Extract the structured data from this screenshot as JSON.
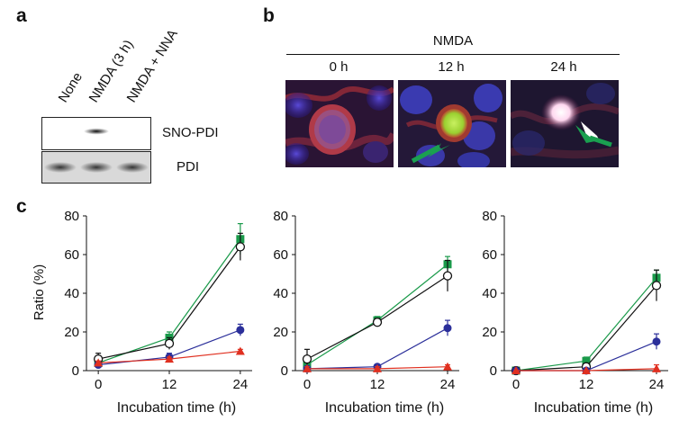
{
  "panel_a": {
    "letter": "a",
    "lanes": [
      "None",
      "NMDA (3 h)",
      "NMDA + NNA"
    ],
    "bands": [
      {
        "label": "SNO-PDI",
        "intensity": [
          0,
          1,
          0
        ]
      },
      {
        "label": "PDI",
        "intensity": [
          1,
          1,
          1
        ]
      }
    ]
  },
  "panel_b": {
    "letter": "b",
    "title": "NMDA",
    "timepoints": [
      "0 h",
      "12 h",
      "24 h"
    ]
  },
  "panel_c": {
    "letter": "c",
    "ylabel": "Ratio (%)",
    "xlabel": "Incubation time (h)"
  },
  "chart_data": [
    {
      "type": "line",
      "title": "",
      "xlabel": "Incubation time (h)",
      "ylabel": "Ratio (%)",
      "x": [
        0,
        12,
        24
      ],
      "xticks": [
        "0",
        "12",
        "24"
      ],
      "yticks": [
        "0",
        "20",
        "40",
        "60",
        "80"
      ],
      "xlim": [
        -2,
        26
      ],
      "ylim": [
        0,
        80
      ],
      "series": [
        {
          "name": "green-square",
          "color": "#1a9a4a",
          "marker": "square",
          "values": [
            4,
            17,
            68
          ],
          "err": [
            1,
            3,
            8
          ]
        },
        {
          "name": "open-circle",
          "color": "#111111",
          "marker": "open-circle",
          "values": [
            6,
            14,
            64
          ],
          "err": [
            3,
            3,
            7
          ]
        },
        {
          "name": "blue-circle",
          "color": "#2b2f9a",
          "marker": "circle",
          "values": [
            3,
            7,
            21
          ],
          "err": [
            1,
            2,
            3
          ]
        },
        {
          "name": "red-triangle",
          "color": "#e03020",
          "marker": "triangle",
          "values": [
            4,
            6,
            10
          ],
          "err": [
            1,
            1,
            1
          ]
        }
      ]
    },
    {
      "type": "line",
      "title": "",
      "xlabel": "Incubation time (h)",
      "ylabel": "",
      "x": [
        0,
        12,
        24
      ],
      "xticks": [
        "0",
        "12",
        "24"
      ],
      "yticks": [
        "0",
        "20",
        "40",
        "60",
        "80"
      ],
      "xlim": [
        -2,
        26
      ],
      "ylim": [
        0,
        80
      ],
      "series": [
        {
          "name": "green-square",
          "color": "#1a9a4a",
          "marker": "square",
          "values": [
            3,
            26,
            55
          ],
          "err": [
            1,
            2,
            4
          ]
        },
        {
          "name": "open-circle",
          "color": "#111111",
          "marker": "open-circle",
          "values": [
            6,
            25,
            49
          ],
          "err": [
            5,
            2,
            8
          ]
        },
        {
          "name": "blue-circle",
          "color": "#2b2f9a",
          "marker": "circle",
          "values": [
            1,
            2,
            22
          ],
          "err": [
            1,
            1,
            4
          ]
        },
        {
          "name": "red-triangle",
          "color": "#e03020",
          "marker": "triangle",
          "values": [
            1,
            1,
            2
          ],
          "err": [
            1,
            1,
            1
          ]
        }
      ]
    },
    {
      "type": "line",
      "title": "",
      "xlabel": "Incubation time (h)",
      "ylabel": "",
      "x": [
        0,
        12,
        24
      ],
      "xticks": [
        "0",
        "12",
        "24"
      ],
      "yticks": [
        "0",
        "20",
        "40",
        "60",
        "80"
      ],
      "xlim": [
        -2,
        26
      ],
      "ylim": [
        0,
        80
      ],
      "series": [
        {
          "name": "green-square",
          "color": "#1a9a4a",
          "marker": "square",
          "values": [
            0,
            5,
            48
          ],
          "err": [
            0,
            2,
            4
          ]
        },
        {
          "name": "open-circle",
          "color": "#111111",
          "marker": "open-circle",
          "values": [
            0,
            2,
            44
          ],
          "err": [
            0,
            1,
            8
          ]
        },
        {
          "name": "blue-circle",
          "color": "#2b2f9a",
          "marker": "circle",
          "values": [
            0,
            0,
            15
          ],
          "err": [
            0,
            0,
            4
          ]
        },
        {
          "name": "red-triangle",
          "color": "#e03020",
          "marker": "triangle",
          "values": [
            0,
            0,
            1
          ],
          "err": [
            0,
            0,
            2
          ]
        }
      ]
    }
  ]
}
